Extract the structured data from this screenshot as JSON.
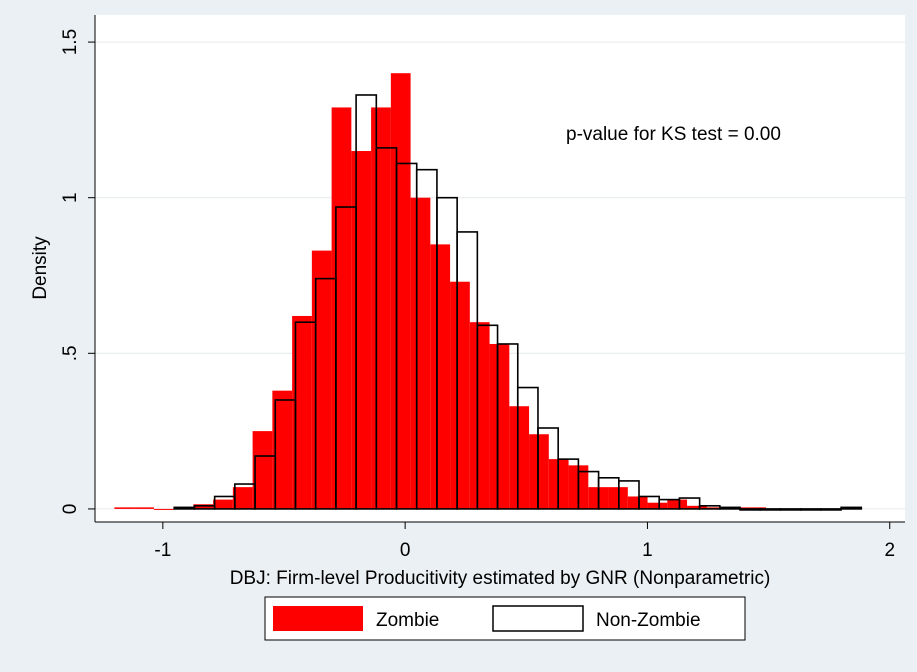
{
  "chart_data": {
    "type": "histogram",
    "annotation": "p-value for KS test = 0.00",
    "x_label": "DBJ: Firm-level Producitivity estimated by GNR (Nonparametric)",
    "y_label": "Density",
    "xlim": [
      -1.28,
      2.063
    ],
    "ylim": [
      -0.042,
      1.587
    ],
    "xticks": [
      -1,
      0,
      1,
      2
    ],
    "yticks": [
      0,
      {
        "value": 0.5,
        "label": ".5"
      },
      1,
      1.5
    ],
    "grid": true,
    "legend": "bottom",
    "series": [
      {
        "name": "Zombie",
        "color": "#ff0000",
        "style": "filled",
        "bins": [
          -1.2,
          -1.1185,
          -1.037,
          -0.9555,
          -0.874,
          -0.7925,
          -0.711,
          -0.6295,
          -0.548,
          -0.4665,
          -0.385,
          -0.3035,
          -0.222,
          -0.1405,
          -0.059,
          0.0225,
          0.104,
          0.1855,
          0.267,
          0.3485,
          0.43,
          0.5115,
          0.593,
          0.6745,
          0.756,
          0.8375,
          0.919,
          1.0005,
          1.082,
          1.1635,
          1.245,
          1.3265,
          1.408,
          1.4895
        ],
        "values": [
          0.005,
          0.005,
          0,
          0.005,
          0.015,
          0.03,
          0.07,
          0.25,
          0.38,
          0.62,
          0.83,
          1.29,
          1.15,
          1.29,
          1.4,
          1.0,
          0.85,
          0.73,
          0.6,
          0.53,
          0.33,
          0.24,
          0.16,
          0.14,
          0.07,
          0.07,
          0.04,
          0.02,
          0.03,
          0.01,
          0.005,
          0.005,
          0.005
        ]
      },
      {
        "name": "Non-Zombie",
        "color": "#000000",
        "style": "outline",
        "bins": [
          -0.953,
          -0.8696,
          -0.7862,
          -0.7028,
          -0.6194,
          -0.536,
          -0.4526,
          -0.3692,
          -0.2858,
          -0.2024,
          -0.119,
          -0.0356,
          0.0478,
          0.1312,
          0.2146,
          0.298,
          0.3814,
          0.4648,
          0.5482,
          0.6316,
          0.715,
          0.7984,
          0.8818,
          0.9652,
          1.0486,
          1.132,
          1.2154,
          1.2988,
          1.3822,
          1.4656,
          1.549,
          1.6324,
          1.7158,
          1.7992,
          1.8826
        ],
        "values": [
          0.005,
          0.01,
          0.04,
          0.08,
          0.17,
          0.35,
          0.6,
          0.74,
          0.97,
          1.33,
          1.16,
          1.11,
          1.09,
          1.0,
          0.89,
          0.59,
          0.53,
          0.39,
          0.26,
          0.16,
          0.12,
          0.1,
          0.09,
          0.04,
          0.03,
          0.035,
          0.01,
          0.005,
          0,
          0,
          0,
          0,
          0,
          0.005
        ]
      }
    ]
  }
}
